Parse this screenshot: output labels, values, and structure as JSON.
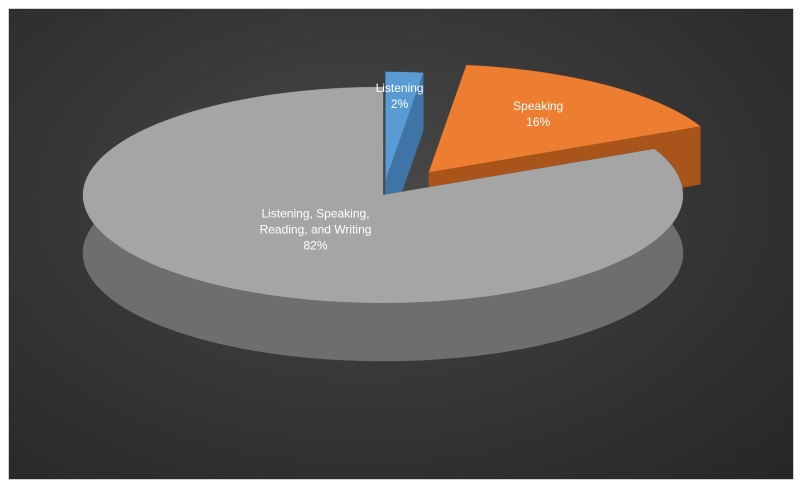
{
  "chart_data": {
    "type": "pie",
    "style": "3d-exploded",
    "slices": [
      {
        "name": "Listening",
        "value": 2,
        "percent_label": "2%",
        "color": "#5b9bd5",
        "side_color": "#3f74a6"
      },
      {
        "name": "Speaking",
        "value": 16,
        "percent_label": "16%",
        "color": "#ed7d31",
        "side_color": "#a9541b"
      },
      {
        "name": "Listening, Speaking, Reading, and Writing",
        "value": 82,
        "percent_label": "82%",
        "color": "#a5a5a5",
        "side_color": "#6e6e6e"
      }
    ],
    "background_color": "#333333",
    "legend": "none"
  }
}
